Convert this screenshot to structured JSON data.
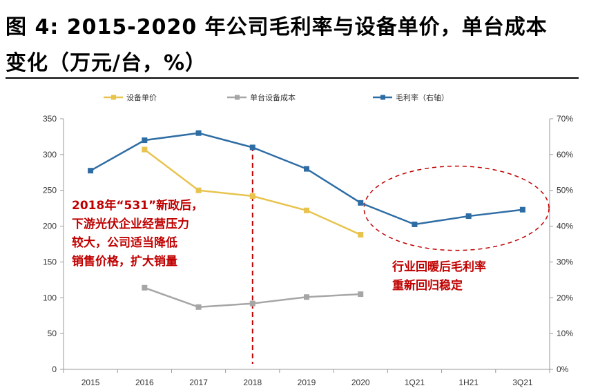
{
  "title": {
    "line1": "图 4:  2015-2020 年公司毛利率与设备单价，单台成本",
    "line2": "变化（万元/台，%）"
  },
  "chart_data": {
    "type": "line",
    "categories": [
      "2015",
      "2016",
      "2017",
      "2018",
      "2019",
      "2020",
      "1Q21",
      "1H21",
      "3Q21"
    ],
    "series": [
      {
        "name": "设备单价",
        "axis": "left",
        "color": "#e8c34d",
        "values": [
          null,
          307,
          250,
          242,
          222,
          188,
          null,
          null,
          null
        ]
      },
      {
        "name": "单台设备成本",
        "axis": "left",
        "color": "#a6a6a6",
        "values": [
          null,
          114,
          87,
          92,
          101,
          105,
          null,
          null,
          null
        ]
      },
      {
        "name": "毛利率（右轴）",
        "axis": "right",
        "color": "#2e6da4",
        "values": [
          55.5,
          64,
          66,
          62,
          56,
          46.5,
          40.5,
          42.8,
          44.6
        ]
      }
    ],
    "left_axis": {
      "ylim": [
        0,
        350
      ],
      "ticks": [
        "0",
        "50",
        "100",
        "150",
        "200",
        "250",
        "300",
        "350"
      ]
    },
    "right_axis": {
      "ylim": [
        0,
        70
      ],
      "ticks": [
        "0%",
        "10%",
        "20%",
        "30%",
        "40%",
        "50%",
        "60%",
        "70%"
      ]
    },
    "legend_position": "top",
    "grid": false,
    "annotations": {
      "left_note": [
        "2018年“531”新政后，",
        "下游光伏企业经营压力",
        "较大，公司适当降低",
        "销售价格，扩大销量"
      ],
      "right_note": [
        "行业回暖后毛利率",
        "重新回归稳定"
      ],
      "marker_category": "2018",
      "highlight_categories": [
        "2020",
        "1Q21",
        "1H21",
        "3Q21"
      ]
    }
  }
}
